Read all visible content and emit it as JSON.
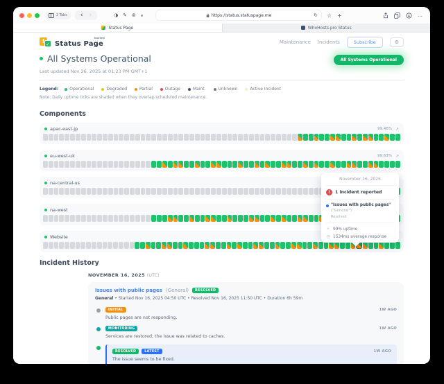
{
  "browser": {
    "tabs_count_label": "2 Tabs",
    "url": "https://status.statuspage.me",
    "tabs": [
      {
        "title": "Status Page",
        "active": true
      },
      {
        "title": "WhoHosts.pro Status",
        "active": false
      }
    ],
    "icons": {
      "back": "‹",
      "forward": "›",
      "reload": "↻",
      "star": "☆",
      "plus": "+",
      "more": "…",
      "ext1": "◑",
      "ext2": "✎",
      "ext3": "⊛"
    }
  },
  "header": {
    "brand": "Status Page",
    "brand_sup": "hosted",
    "nav_maintenance": "Maintenance",
    "nav_incidents": "Incidents",
    "subscribe_label": "Subscribe",
    "gear_glyph": "⚙"
  },
  "status": {
    "title": "All Systems Operational",
    "updated": "Last updated Nov 26, 2025 at 01:23 PM GMT+1",
    "pill": "All Systems Operational",
    "pill_color": "#12b76a"
  },
  "legend": {
    "label": "Legend:",
    "items": [
      {
        "label": "Operational",
        "color": "#1ec26b"
      },
      {
        "label": "Degraded",
        "color": "#f4c20d"
      },
      {
        "label": "Partial",
        "color": "#f79009"
      },
      {
        "label": "Outage",
        "color": "#e5484d"
      },
      {
        "label": "Maint.",
        "color": "#3d5166"
      },
      {
        "label": "Unknown",
        "color": "#6f7a87"
      },
      {
        "label": "Active Incident",
        "color": "#faeec9"
      }
    ],
    "note": "Note: Daily uptime ticks are shaded when they overlap scheduled maintenance."
  },
  "components": {
    "heading": "Components",
    "rows": [
      {
        "name": "apac-east-jp",
        "uptime": "99.46%",
        "ticks": "gggggggggggggggggggggggggggggggggggggggggggggggMGGMGGMMGGMGMMGGMGG"
      },
      {
        "name": "eu-west-uk",
        "uptime": "99.63%",
        "ticks": "ggggggggggggggggggggGGMGMMGGMGGMMGGGMGGMGMGGMMGGMGMGGMGGMMGGMMGGGG"
      },
      {
        "name": "na-central-us",
        "uptime": "99.72%",
        "ticks": "ggggggggggggggggggggggggggggggggggggggggggggggggggggggggggggggGGGG"
      },
      {
        "name": "na-west",
        "uptime": "",
        "ticks": "ggggggggggggggggggggGGGMMGGMGGMMGGMGGGMMGGMGMGGMMGGMGGMGMMGGMGGGMG"
      },
      {
        "name": "Website",
        "uptime": "",
        "ticks": "gggggggggggggggggGGMGGMMGGMGGGMMGGMGMGGMMGGMGGMMGGMGGMMGGMHMGGMGGG"
      }
    ]
  },
  "tooltip": {
    "date": "November 16, 2025",
    "alert_glyph": "!",
    "incident_count": "1 incident reported",
    "incident_title": "\"Issues with public pages\"",
    "incident_scope": "(\"General\")",
    "incident_status": "Resolved",
    "uptime_stat": "99% uptime",
    "response_stat": "1534ms average response",
    "uptime_icon_glyph": "⚡",
    "response_icon_glyph": "◷"
  },
  "incident_history": {
    "heading": "Incident History",
    "date_header": "NOVEMBER 16, 2025",
    "date_suffix": "(UTC)",
    "incident": {
      "title": "Issues with public pages",
      "scope": "(General)",
      "badge": "RESOLVED",
      "badge_color": "#12b76a",
      "meta_bold": "General",
      "meta": "• Started Nov 16, 2025 04:50 UTC • Resolved Nov 16, 2025 11:50 UTC • Duration 6h 59m",
      "updates": [
        {
          "dot": "#98a2b3",
          "badges": [
            {
              "label": "INITIAL",
              "color": "#f79009"
            }
          ],
          "time": "1W AGO",
          "text": "Public pages are not responding.",
          "highlight": false
        },
        {
          "dot": "#12a5a5",
          "badges": [
            {
              "label": "MONITORING",
              "color": "#12a5a5"
            }
          ],
          "time": "1W AGO",
          "text": "Services are restored; the issue was related to caches.",
          "highlight": false
        },
        {
          "dot": "#12b76a",
          "badges": [
            {
              "label": "RESOLVED",
              "color": "#12b76a"
            },
            {
              "label": "LATEST",
              "color": "#2970ff"
            }
          ],
          "time": "1W AGO",
          "text": "The issue seems to be fixed.",
          "highlight": true
        }
      ]
    }
  }
}
